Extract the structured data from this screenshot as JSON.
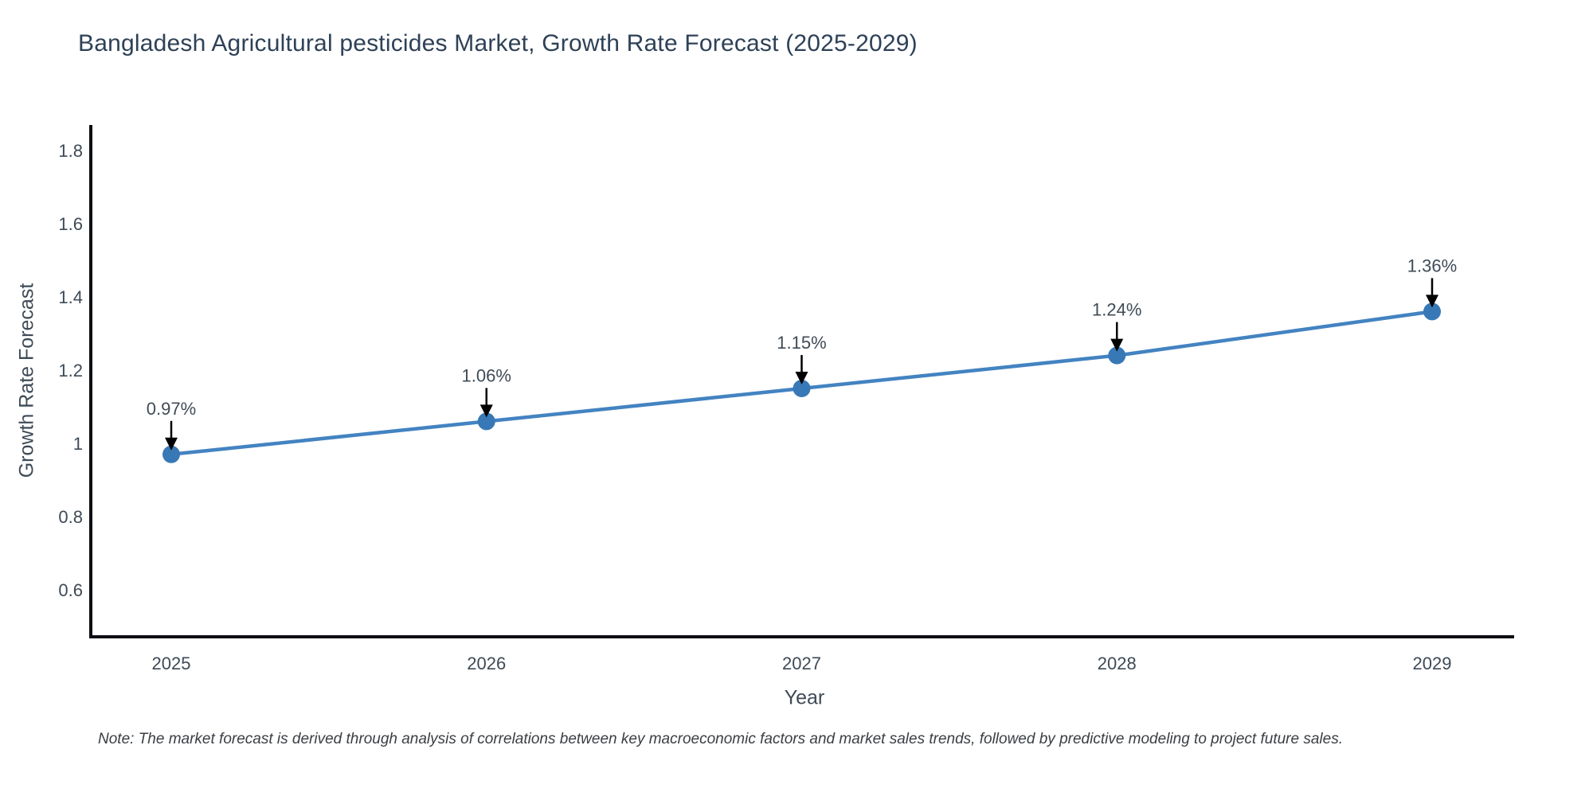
{
  "chart_data": {
    "type": "line",
    "title": "Bangladesh Agricultural pesticides Market, Growth Rate Forecast (2025-2029)",
    "xlabel": "Year",
    "ylabel": "Growth Rate Forecast",
    "categories": [
      "2025",
      "2026",
      "2027",
      "2028",
      "2029"
    ],
    "series": [
      {
        "name": "Growth Rate Forecast",
        "values": [
          0.97,
          1.06,
          1.15,
          1.24,
          1.36
        ],
        "point_labels": [
          "0.97%",
          "1.06%",
          "1.15%",
          "1.24%",
          "1.36%"
        ]
      }
    ],
    "ytick_values": [
      1.8,
      1.6,
      1.4,
      1.2,
      1.0,
      0.8,
      0.6
    ],
    "ytick_labels": [
      "1.8",
      "1.6",
      "1.4",
      "1.2",
      "1",
      "0.8",
      "0.6"
    ],
    "ylim": [
      0.46,
      1.85
    ],
    "grid": false,
    "legend": false,
    "annotations": "black down-arrow from each point label to its marker",
    "note": "Note: The market forecast is derived through analysis of correlations between key macroeconomic factors and market sales trends, followed by predictive modeling to project future sales.",
    "colors": {
      "line": "#4383c1",
      "marker": "#3878b6",
      "axis": "#0c0e12",
      "arrow": "#000000",
      "tick_text": "#3e4a56",
      "point_label_text": "#404b56",
      "title_text": "#2e4157",
      "background": "#ffffff"
    }
  }
}
